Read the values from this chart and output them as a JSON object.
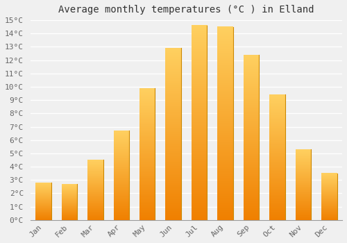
{
  "title": "Average monthly temperatures (°C ) in Elland",
  "months": [
    "Jan",
    "Feb",
    "Mar",
    "Apr",
    "May",
    "Jun",
    "Jul",
    "Aug",
    "Sep",
    "Oct",
    "Nov",
    "Dec"
  ],
  "values": [
    2.8,
    2.7,
    4.5,
    6.7,
    9.9,
    12.9,
    14.6,
    14.5,
    12.4,
    9.4,
    5.3,
    3.5
  ],
  "bar_color": "#FFA500",
  "bar_color_light": "#FFD060",
  "bar_color_dark": "#F08000",
  "bar_edge_color": "#CC8800",
  "ylim": [
    0,
    15
  ],
  "yticks": [
    0,
    1,
    2,
    3,
    4,
    5,
    6,
    7,
    8,
    9,
    10,
    11,
    12,
    13,
    14,
    15
  ],
  "ytick_labels": [
    "0°C",
    "1°C",
    "2°C",
    "3°C",
    "4°C",
    "5°C",
    "6°C",
    "7°C",
    "8°C",
    "9°C",
    "10°C",
    "11°C",
    "12°C",
    "13°C",
    "14°C",
    "15°C"
  ],
  "background_color": "#f0f0f0",
  "plot_bg_color": "#f0f0f0",
  "grid_color": "#ffffff",
  "title_fontsize": 10,
  "tick_fontsize": 8,
  "font_family": "monospace"
}
